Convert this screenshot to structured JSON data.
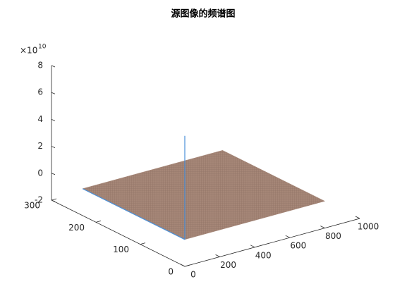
{
  "chart_data": {
    "type": "surface",
    "title": "源图像的频谱图",
    "xlim": [
      0,
      1000
    ],
    "xticks": [
      0,
      200,
      400,
      600,
      800,
      1000
    ],
    "ylim": [
      0,
      300
    ],
    "yticks": [
      0,
      100,
      200,
      300
    ],
    "zlim": [
      -2,
      8
    ],
    "zticks": [
      -2,
      0,
      2,
      4,
      6,
      8
    ],
    "z_multiplier": "×10",
    "z_exponent": "10",
    "surface": {
      "xrange": [
        0,
        800
      ],
      "yrange": [
        0,
        230
      ],
      "z": 0,
      "color": "#a58677"
    },
    "peak": {
      "x": 0,
      "y": 0,
      "z": 7.7,
      "color": "#4a90d9"
    }
  }
}
